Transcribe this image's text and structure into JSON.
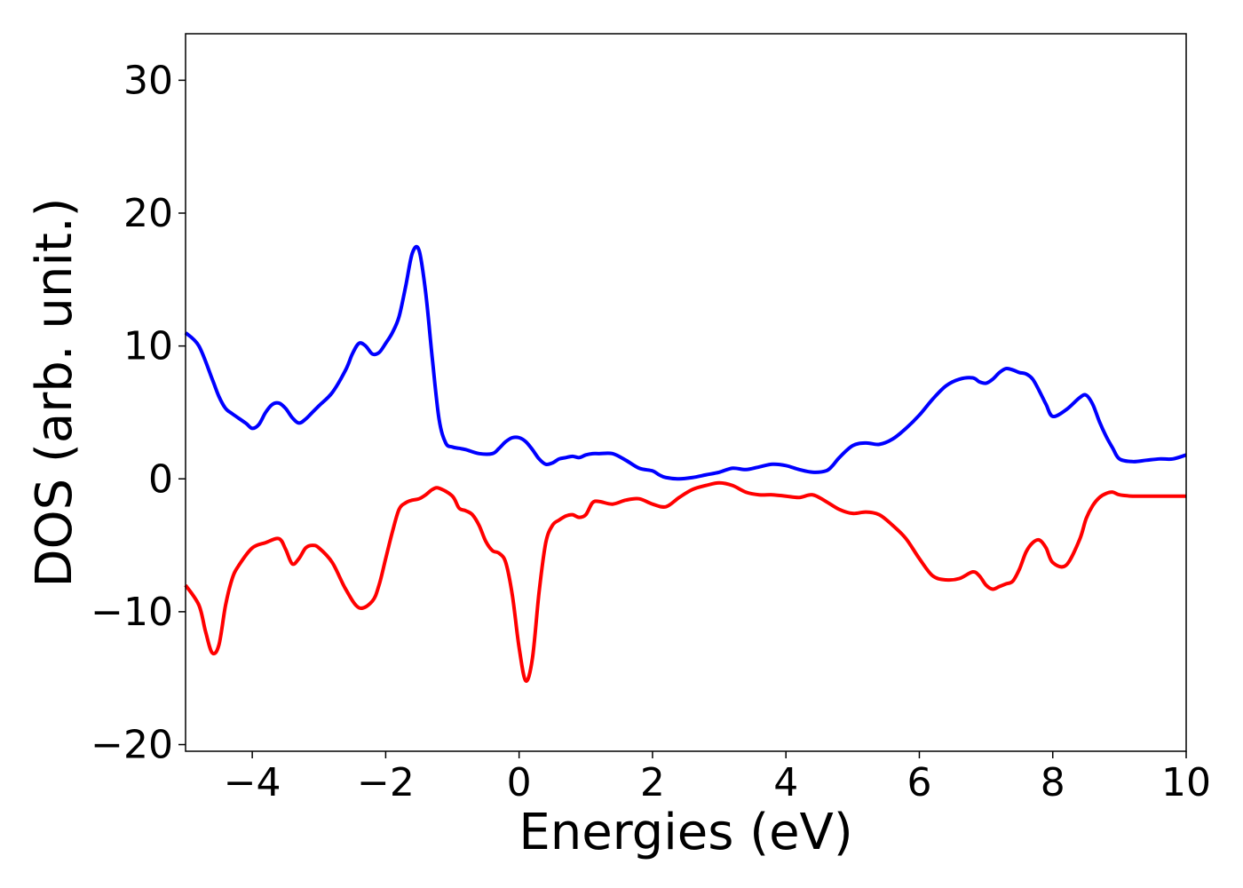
{
  "chart_data": {
    "type": "line",
    "title": "",
    "xlabel": "Energies (eV)",
    "ylabel": "DOS (arb. unit.)",
    "xlim": [
      -5,
      10
    ],
    "ylim": [
      -20.5,
      33.5
    ],
    "grid": false,
    "legend": "none",
    "x_ticks": [
      {
        "value": -4,
        "label": "−4"
      },
      {
        "value": -2,
        "label": "−2"
      },
      {
        "value": 0,
        "label": "0"
      },
      {
        "value": 2,
        "label": "2"
      },
      {
        "value": 4,
        "label": "4"
      },
      {
        "value": 6,
        "label": "6"
      },
      {
        "value": 8,
        "label": "8"
      },
      {
        "value": 10,
        "label": "10"
      }
    ],
    "y_ticks": [
      {
        "value": -20,
        "label": "−20"
      },
      {
        "value": -10,
        "label": "−10"
      },
      {
        "value": 0,
        "label": "0"
      },
      {
        "value": 10,
        "label": "10"
      },
      {
        "value": 20,
        "label": "20"
      },
      {
        "value": 30,
        "label": "30"
      }
    ],
    "series": [
      {
        "color": "#0000ff",
        "x": [
          -5.0,
          -4.8,
          -4.6,
          -4.5,
          -4.4,
          -4.3,
          -4.1,
          -4.0,
          -3.9,
          -3.8,
          -3.7,
          -3.6,
          -3.5,
          -3.4,
          -3.3,
          -3.2,
          -3.1,
          -3.0,
          -2.8,
          -2.6,
          -2.5,
          -2.4,
          -2.3,
          -2.2,
          -2.1,
          -2.0,
          -1.9,
          -1.8,
          -1.7,
          -1.6,
          -1.5,
          -1.4,
          -1.3,
          -1.2,
          -1.1,
          -1.0,
          -0.9,
          -0.8,
          -0.6,
          -0.4,
          -0.3,
          -0.2,
          -0.1,
          0.0,
          0.1,
          0.2,
          0.3,
          0.4,
          0.5,
          0.6,
          0.7,
          0.8,
          0.9,
          1.0,
          1.1,
          1.2,
          1.4,
          1.6,
          1.8,
          2.0,
          2.1,
          2.2,
          2.4,
          2.6,
          2.8,
          3.0,
          3.2,
          3.4,
          3.6,
          3.8,
          4.0,
          4.2,
          4.4,
          4.6,
          4.7,
          4.8,
          5.0,
          5.2,
          5.4,
          5.6,
          5.8,
          6.0,
          6.2,
          6.4,
          6.6,
          6.8,
          6.9,
          7.0,
          7.1,
          7.2,
          7.3,
          7.4,
          7.5,
          7.6,
          7.7,
          7.8,
          7.9,
          8.0,
          8.2,
          8.4,
          8.5,
          8.6,
          8.7,
          8.8,
          8.9,
          9.0,
          9.2,
          9.4,
          9.6,
          9.8,
          10.0
        ],
        "y": [
          11.0,
          10.0,
          7.5,
          6.2,
          5.3,
          4.9,
          4.2,
          3.8,
          4.1,
          5.0,
          5.6,
          5.7,
          5.3,
          4.6,
          4.2,
          4.5,
          5.0,
          5.5,
          6.5,
          8.2,
          9.4,
          10.2,
          10.0,
          9.4,
          9.5,
          10.2,
          11.0,
          12.2,
          14.5,
          17.0,
          17.2,
          14.0,
          9.0,
          4.5,
          2.7,
          2.4,
          2.3,
          2.2,
          1.9,
          1.9,
          2.3,
          2.8,
          3.1,
          3.1,
          2.8,
          2.2,
          1.5,
          1.1,
          1.2,
          1.5,
          1.6,
          1.7,
          1.6,
          1.8,
          1.9,
          1.9,
          1.9,
          1.4,
          0.8,
          0.6,
          0.3,
          0.1,
          0.0,
          0.1,
          0.3,
          0.5,
          0.8,
          0.7,
          0.9,
          1.1,
          1.0,
          0.7,
          0.5,
          0.6,
          1.0,
          1.6,
          2.5,
          2.7,
          2.6,
          3.0,
          3.8,
          4.8,
          6.0,
          7.0,
          7.5,
          7.6,
          7.3,
          7.2,
          7.5,
          8.0,
          8.3,
          8.2,
          8.0,
          7.9,
          7.5,
          6.6,
          5.6,
          4.7,
          5.2,
          6.1,
          6.3,
          5.6,
          4.3,
          3.2,
          2.3,
          1.5,
          1.3,
          1.4,
          1.5,
          1.5,
          1.8
        ]
      },
      {
        "color": "#ff0000",
        "x": [
          -5.0,
          -4.8,
          -4.7,
          -4.6,
          -4.5,
          -4.4,
          -4.3,
          -4.2,
          -4.0,
          -3.8,
          -3.6,
          -3.5,
          -3.4,
          -3.3,
          -3.2,
          -3.1,
          -3.0,
          -2.8,
          -2.6,
          -2.4,
          -2.2,
          -2.1,
          -2.0,
          -1.9,
          -1.8,
          -1.7,
          -1.6,
          -1.5,
          -1.4,
          -1.3,
          -1.2,
          -1.0,
          -0.9,
          -0.8,
          -0.7,
          -0.6,
          -0.5,
          -0.4,
          -0.3,
          -0.2,
          -0.1,
          0.0,
          0.1,
          0.2,
          0.3,
          0.4,
          0.5,
          0.6,
          0.7,
          0.8,
          0.9,
          1.0,
          1.1,
          1.2,
          1.4,
          1.6,
          1.8,
          2.0,
          2.2,
          2.4,
          2.6,
          2.8,
          3.0,
          3.2,
          3.4,
          3.6,
          3.8,
          4.0,
          4.2,
          4.4,
          4.6,
          4.8,
          5.0,
          5.2,
          5.4,
          5.6,
          5.8,
          6.0,
          6.2,
          6.4,
          6.6,
          6.8,
          6.9,
          7.0,
          7.1,
          7.2,
          7.3,
          7.4,
          7.5,
          7.6,
          7.7,
          7.8,
          7.9,
          8.0,
          8.2,
          8.4,
          8.5,
          8.6,
          8.7,
          8.8,
          8.9,
          9.0,
          9.2,
          9.4,
          9.6,
          9.8,
          10.0
        ],
        "y": [
          -8.0,
          -9.5,
          -11.5,
          -13.1,
          -12.5,
          -9.5,
          -7.5,
          -6.5,
          -5.2,
          -4.8,
          -4.5,
          -5.3,
          -6.4,
          -6.0,
          -5.2,
          -5.0,
          -5.2,
          -6.3,
          -8.3,
          -9.7,
          -9.2,
          -8.0,
          -6.0,
          -4.0,
          -2.3,
          -1.8,
          -1.6,
          -1.5,
          -1.2,
          -0.8,
          -0.7,
          -1.3,
          -2.2,
          -2.4,
          -2.7,
          -3.5,
          -4.7,
          -5.4,
          -5.6,
          -6.3,
          -8.8,
          -12.7,
          -15.2,
          -13.5,
          -8.5,
          -4.8,
          -3.5,
          -3.1,
          -2.8,
          -2.7,
          -2.9,
          -2.7,
          -1.8,
          -1.7,
          -1.9,
          -1.6,
          -1.5,
          -1.9,
          -2.1,
          -1.4,
          -0.8,
          -0.5,
          -0.3,
          -0.5,
          -1.0,
          -1.2,
          -1.2,
          -1.3,
          -1.4,
          -1.2,
          -1.7,
          -2.3,
          -2.6,
          -2.5,
          -2.7,
          -3.5,
          -4.5,
          -6.0,
          -7.3,
          -7.6,
          -7.5,
          -7.0,
          -7.3,
          -8.0,
          -8.3,
          -8.1,
          -7.9,
          -7.7,
          -6.8,
          -5.5,
          -4.8,
          -4.6,
          -5.2,
          -6.3,
          -6.5,
          -4.6,
          -3.0,
          -2.0,
          -1.4,
          -1.1,
          -1.0,
          -1.2,
          -1.3,
          -1.3,
          -1.3,
          -1.3,
          -1.3
        ]
      }
    ]
  }
}
